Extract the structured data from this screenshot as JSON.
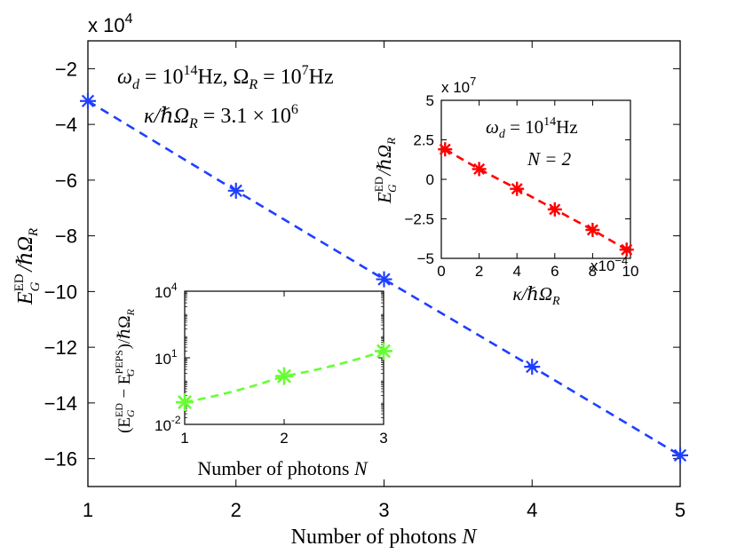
{
  "chart_data": [
    {
      "id": "main",
      "type": "line",
      "x": [
        1,
        2,
        3,
        4,
        5
      ],
      "series": [
        {
          "values": [
            -31600,
            -63800,
            -95600,
            -127000,
            -158800
          ],
          "color": "#1f3fff",
          "marker": "*",
          "linestyle": "dashed"
        }
      ],
      "xlim": [
        1,
        5
      ],
      "ylim": [
        -170000,
        -10000
      ],
      "xticks": [
        "1",
        "2",
        "3",
        "4",
        "5"
      ],
      "yticks": [
        "−2",
        "−4",
        "−6",
        "−8",
        "−10",
        "−12",
        "−14",
        "−16"
      ],
      "exponent": {
        "prefix": "x 10",
        "power": "4"
      },
      "xlabel": {
        "text": "Number of photons ",
        "var": "N"
      },
      "ylabel": {
        "base": "E",
        "sub": "G",
        "sup": "ED",
        "rest": "/ℏΩ",
        "rest_sub": "R"
      },
      "annotations": [
        {
          "line1": "ω_d = 10^14 Hz, Ω_R = 10^7 Hz"
        },
        {
          "line2": "κ/ℏΩ_R = 3.1 × 10^6"
        }
      ],
      "grid": false
    },
    {
      "id": "inset-top-right",
      "type": "line",
      "x": [
        2e-05,
        0.0002,
        0.0004,
        0.0006,
        0.0008,
        0.00098
      ],
      "series": [
        {
          "values": [
            19000000,
            6500000,
            -6000000,
            -19000000,
            -32000000,
            -44500000
          ],
          "color": "#ff0000",
          "marker": "*",
          "linestyle": "dashed"
        }
      ],
      "xlim": [
        0,
        0.001
      ],
      "ylim": [
        -50000000,
        50000000
      ],
      "xticks": [
        "0",
        "2",
        "4",
        "6",
        "8",
        "10"
      ],
      "x_exponent": "x10",
      "x_exponent_power": "−4",
      "yticks": [
        "5",
        "2.5",
        "0",
        "−2.5",
        "−5"
      ],
      "y_exponent": {
        "prefix": "x 10",
        "power": "7"
      },
      "xlabel": {
        "text": "κ/ℏΩ",
        "sub": "R"
      },
      "ylabel": {
        "base": "E",
        "sub": "G",
        "sup": "ED",
        "rest": "/ℏΩ",
        "rest_sub": "R"
      },
      "annotations": [
        "ω_d = 10^14 Hz",
        "N = 2"
      ],
      "grid": false
    },
    {
      "id": "inset-bottom",
      "type": "line",
      "x": [
        1,
        2,
        3
      ],
      "series": [
        {
          "values": [
            0.1,
            1.5,
            20
          ],
          "color": "#66ff33",
          "marker": "*",
          "linestyle": "dashed"
        }
      ],
      "xlim": [
        1,
        3
      ],
      "yscale": "log",
      "ylim": [
        0.01,
        10000
      ],
      "xticks": [
        "1",
        "2",
        "3"
      ],
      "yticks": [
        "10^4",
        "10^1",
        "10^-2"
      ],
      "xlabel": {
        "text": "Number of photons ",
        "var": "N"
      },
      "ylabel": {
        "text": "(E_G^ED − E_G^PEPS)/ℏΩ_R"
      },
      "grid": false
    }
  ],
  "labels": {
    "main_exp_prefix": "x 10",
    "main_exp_power": "4",
    "main_xlabel_text": "Number of photons ",
    "main_xlabel_var": "N",
    "ann_omega": "ω",
    "ann_d": "d",
    "ann_eq1": " = 10",
    "ann_14": "14",
    "ann_hz1": "Hz, Ω",
    "ann_R": "R",
    "ann_eq2": " = 10",
    "ann_7": "7",
    "ann_hz2": "Hz",
    "ann2_kappa": "κ/ℏΩ",
    "ann2_R": "R",
    "ann2_val": " = 3.1 × 10",
    "ann2_6": "6",
    "ylab_E": "E",
    "ylab_sup": "ED",
    "ylab_sub": "G",
    "ylab_rest": "/ℏΩ",
    "ylab_R": "R",
    "inset1_exp_prefix": "x 10",
    "inset1_exp_power": "7",
    "inset1_ann1_omega": "ω",
    "inset1_ann1_d": "d",
    "inset1_ann1_eq": " = 10",
    "inset1_ann1_14": "14",
    "inset1_ann1_hz": "Hz",
    "inset1_ann2": "N = 2",
    "inset1_xlab": "κ/ℏΩ",
    "inset1_xlab_R": "R",
    "inset1_xexp": "x10",
    "inset1_xexp_pow": "−4",
    "inset2_xlab_text": "Number of photons ",
    "inset2_xlab_var": "N",
    "inset2_ylab_open": "(E",
    "inset2_ylab_sup1": "ED",
    "inset2_ylab_sub1": "G",
    "inset2_ylab_minus": " − E",
    "inset2_ylab_sup2": "PEPS",
    "inset2_ylab_sub2": "G",
    "inset2_ylab_close": ")/ℏΩ",
    "inset2_ylab_R": "R",
    "inset2_ytick_base": "10",
    "inset2_ytick_4": "4",
    "inset2_ytick_1": "1",
    "inset2_ytick_m2": "-2"
  }
}
